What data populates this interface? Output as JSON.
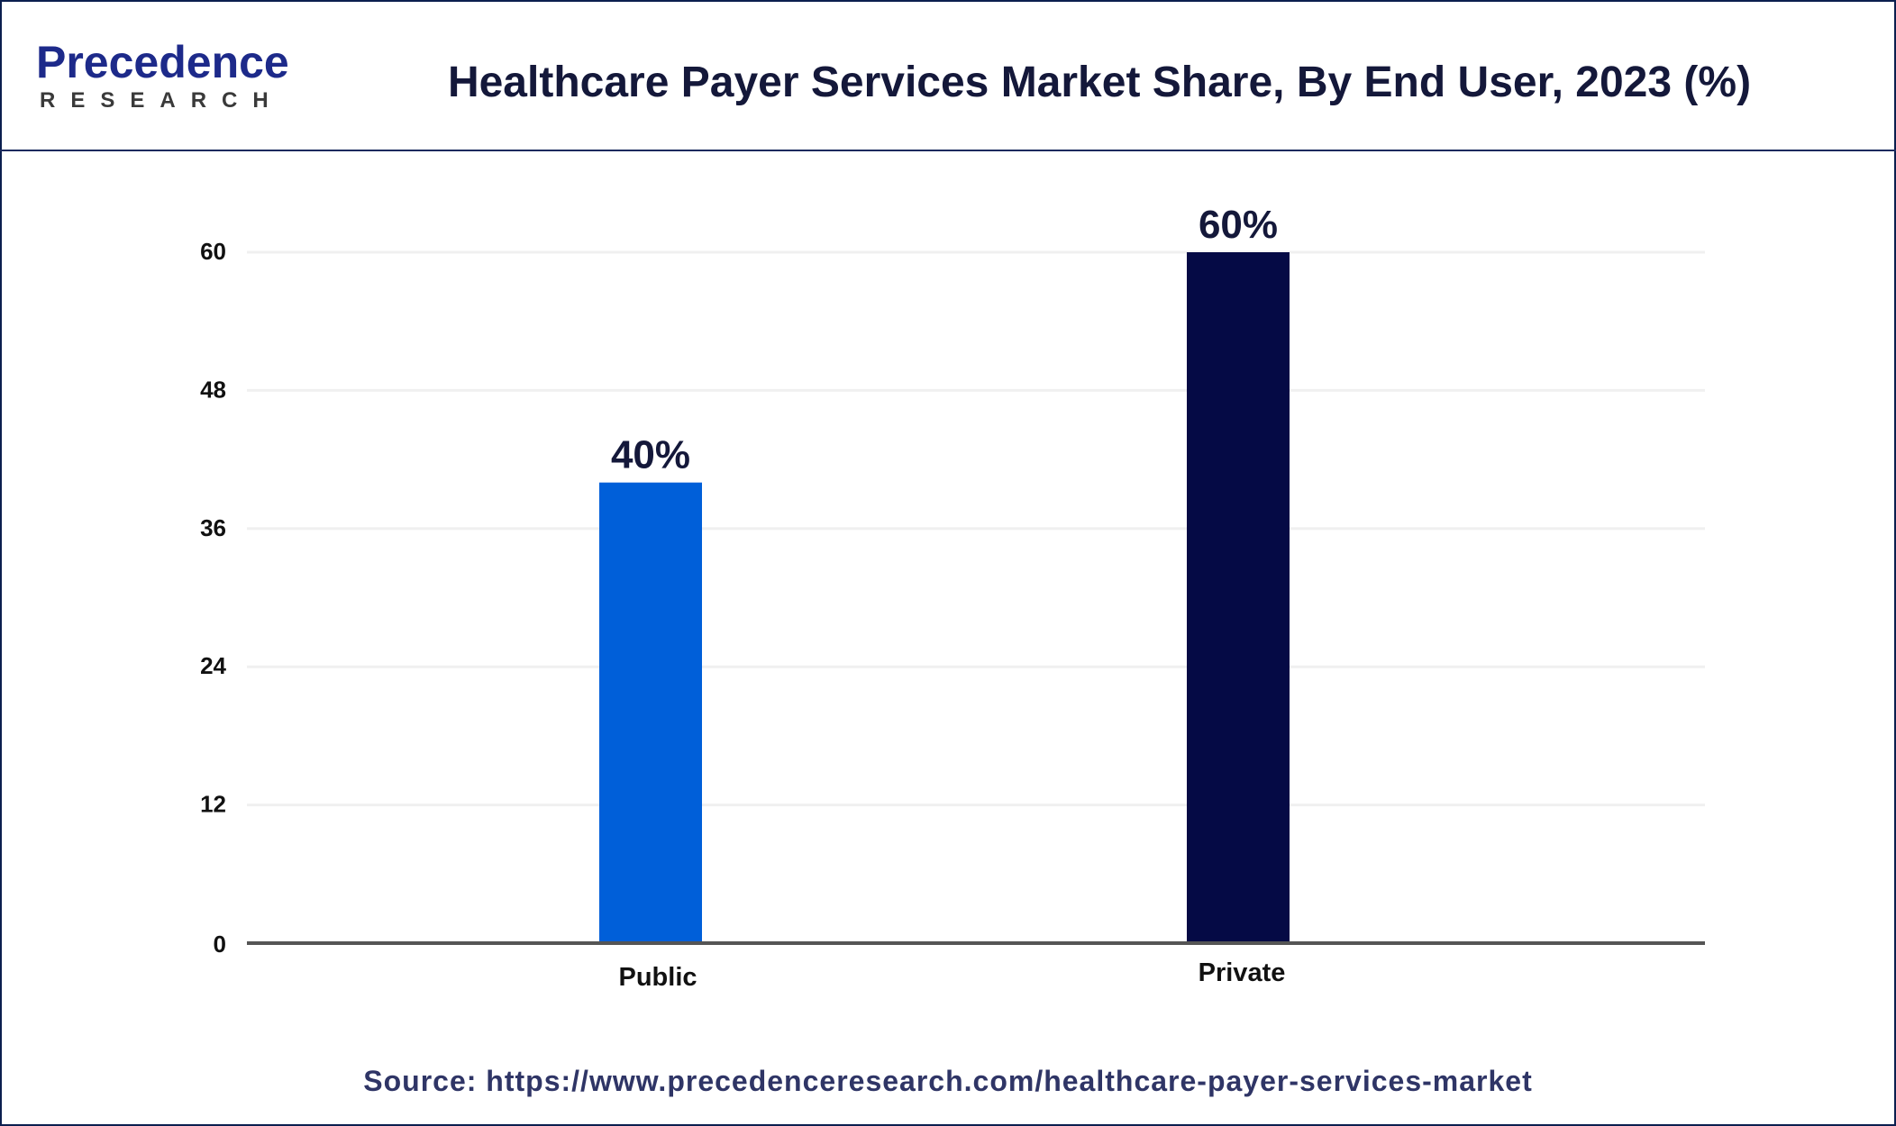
{
  "logo": {
    "word": "Precedence",
    "sub": "RESEARCH"
  },
  "title": "Healthcare Payer Services Market Share, By End User, 2023 (%)",
  "source": "Source: https://www.precedenceresearch.com/healthcare-payer-services-market",
  "chart_data": {
    "type": "bar",
    "title": "Healthcare Payer Services Market Share, By End User, 2023 (%)",
    "categories": [
      "Public",
      "Private"
    ],
    "values": [
      40,
      60
    ],
    "data_labels": [
      "40%",
      "60%"
    ],
    "colors": [
      "#005fd9",
      "#050a45"
    ],
    "ylim": [
      0,
      60
    ],
    "yticks": [
      "0",
      "12",
      "24",
      "36",
      "48",
      "60"
    ],
    "grid": true,
    "xlabel": "",
    "ylabel": ""
  }
}
